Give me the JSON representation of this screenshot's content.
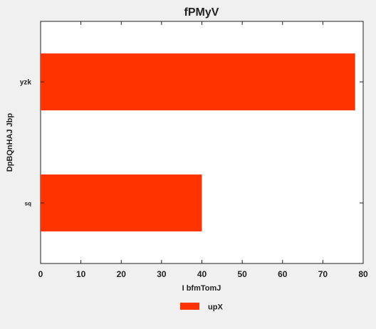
{
  "chart_data": {
    "type": "bar",
    "orientation": "horizontal",
    "title": "fPMyV",
    "xlabel": "I bfmTomJ",
    "ylabel": "DpBQnHAJ Jbp",
    "categories": [
      "yzk",
      "sq"
    ],
    "series": [
      {
        "name": "upX",
        "values": [
          78,
          40
        ],
        "color": "#ff3300"
      }
    ],
    "xlim": [
      0,
      80
    ],
    "xticks": [
      0,
      10,
      20,
      30,
      40,
      50,
      60,
      70,
      80
    ],
    "grid": false,
    "legend": "bottom-center",
    "background": "#ffffff",
    "figure_background": "#f0f0f0"
  }
}
